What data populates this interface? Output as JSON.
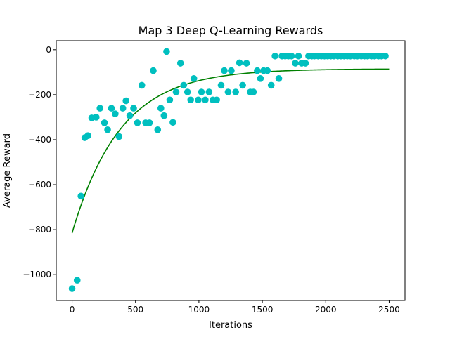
{
  "chart_data": {
    "type": "scatter",
    "title": "Map 3 Deep Q-Learning Rewards",
    "xlabel": "Iterations",
    "ylabel": "Average Reward",
    "xlim": [
      -125,
      2625
    ],
    "ylim": [
      -1115,
      40
    ],
    "xticks": [
      0,
      500,
      1000,
      1500,
      2000,
      2500
    ],
    "yticks": [
      0,
      -200,
      -400,
      -600,
      -800,
      -1000
    ],
    "grid": false,
    "colors": {
      "points": "#00bfbf",
      "fit": "#008000"
    },
    "series": [
      {
        "kind": "points",
        "x": [
          0,
          40,
          70,
          100,
          125,
          155,
          190,
          220,
          255,
          280,
          310,
          340,
          370,
          400,
          425,
          455,
          485,
          515,
          550,
          580,
          610,
          640,
          675,
          700,
          725,
          745,
          770,
          795,
          820,
          855,
          880,
          910,
          935,
          960,
          995,
          1020,
          1050,
          1080,
          1110,
          1140,
          1175,
          1200,
          1230,
          1255,
          1290,
          1320,
          1345,
          1375,
          1405,
          1430,
          1460,
          1485,
          1510,
          1540,
          1570,
          1600,
          1630,
          1655,
          1680,
          1705,
          1730,
          1760,
          1785,
          1810,
          1840,
          1865,
          1890,
          1910,
          1940,
          1965,
          1990,
          2015,
          2040,
          2065,
          2095,
          2120,
          2145,
          2170,
          2195,
          2225,
          2250,
          2280,
          2305,
          2330,
          2360,
          2385,
          2415,
          2440,
          2470
        ],
        "y": [
          -1062,
          -1025,
          -651,
          -391,
          -382,
          -303,
          -300,
          -260,
          -325,
          -356,
          -260,
          -285,
          -386,
          -260,
          -227,
          -293,
          -260,
          -325,
          -158,
          -325,
          -325,
          -93,
          -356,
          -260,
          -293,
          -8,
          -223,
          -323,
          -188,
          -60,
          -158,
          -188,
          -223,
          -128,
          -223,
          -188,
          -223,
          -188,
          -223,
          -223,
          -158,
          -93,
          -188,
          -93,
          -188,
          -58,
          -158,
          -60,
          -188,
          -188,
          -93,
          -128,
          -93,
          -93,
          -158,
          -28,
          -128,
          -28,
          -28,
          -28,
          -28,
          -60,
          -28,
          -60,
          -60,
          -28,
          -28,
          -28,
          -28,
          -28,
          -28,
          -28,
          -28,
          -28,
          -28,
          -28,
          -28,
          -28,
          -28,
          -28,
          -28,
          -28,
          -28,
          -28,
          -28,
          -28,
          -28,
          -28,
          -28
        ]
      },
      {
        "kind": "fit-curve",
        "y_start": -815,
        "y_plateau": -85,
        "decay_constant": 380,
        "x_range": [
          0,
          2500
        ]
      }
    ]
  }
}
